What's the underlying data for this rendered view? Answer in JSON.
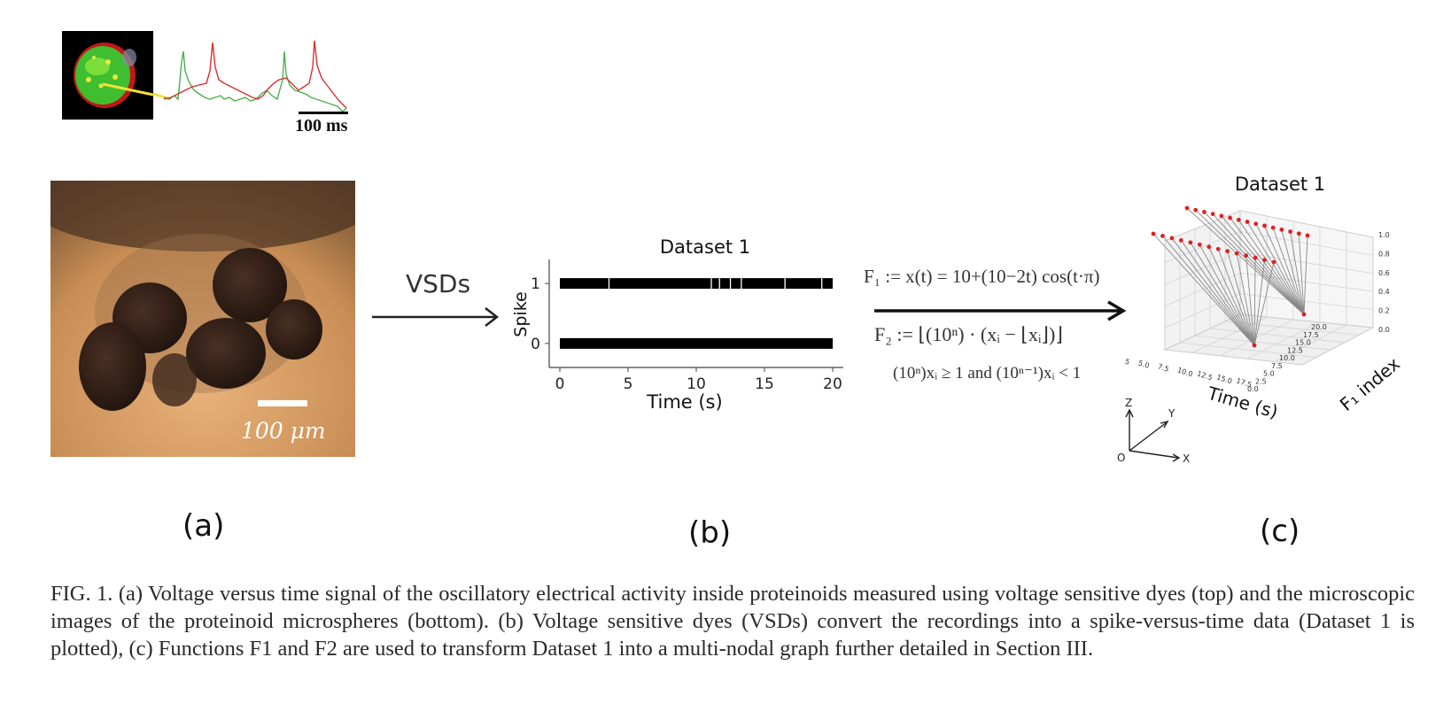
{
  "panel_a": {
    "trace_scale_label": "100 ms",
    "micro_scale_label": "100 μm",
    "label": "(a)",
    "colors": {
      "green_trace": "#4caf50",
      "red_trace": "#d93030",
      "micro_bg": "#d59b5e"
    }
  },
  "arrow_a_b": {
    "label": "VSDs"
  },
  "panel_b": {
    "label": "(b)",
    "chart_data": {
      "type": "scatter",
      "title": "Dataset 1",
      "xlabel": "Time (s)",
      "ylabel": "Spike",
      "xlim": [
        0,
        20
      ],
      "ylim": [
        -0.4,
        1.4
      ],
      "x_ticks": [
        "0",
        "5",
        "10",
        "15",
        "20"
      ],
      "y_ticks": [
        "0",
        "1"
      ],
      "series": [
        {
          "y": 1,
          "x_start": 0,
          "x_end": 20,
          "gaps": [
            3.6,
            11.1,
            11.7,
            12.5,
            13.3,
            16.5,
            19.2
          ]
        },
        {
          "y": 0,
          "x_start": 0,
          "x_end": 20,
          "gaps": []
        }
      ]
    }
  },
  "equations": {
    "f1": "F₁ := x(t) = 10+(10−2t) cos(t·π)",
    "f2": "F₂ := ⌊(10ⁿ) · (xᵢ − ⌊xᵢ⌋)⌋",
    "cond": "(10ⁿ)xᵢ ≥ 1 and (10ⁿ⁻¹)xᵢ < 1"
  },
  "panel_c": {
    "label": "(c)",
    "chart_data": {
      "type": "scatter",
      "title": "Dataset 1",
      "xlabel": "Time (s)",
      "ylabel": "F₁ index",
      "x_ticks": [
        "0.0",
        "2.5",
        "5.0",
        "7.5",
        "10.0",
        "12.5",
        "15.0",
        "17.5"
      ],
      "y_ticks": [
        "0.0",
        "2.5",
        "5.0",
        "7.5",
        "10.0",
        "12.5",
        "15.0",
        "17.5",
        "20.0"
      ],
      "z_ticks": [
        "0.0",
        "0.2",
        "0.4",
        "0.6",
        "0.8",
        "1.0"
      ],
      "point_color": "#e02020"
    },
    "axes_gizmo": {
      "z": "Z",
      "y": "Y",
      "x": "X",
      "origin": "O"
    }
  },
  "caption": "FIG. 1. (a) Voltage versus time signal of the oscillatory electrical activity inside proteinoids measured using voltage sensitive dyes (top) and the microscopic images of the proteinoid microspheres (bottom). (b) Voltage sensitive dyes (VSDs) convert the recordings into a spike-versus-time data (Dataset 1 is plotted), (c) Functions F1 and F2 are used to transform Dataset 1 into a multi-nodal graph further detailed in Section III."
}
